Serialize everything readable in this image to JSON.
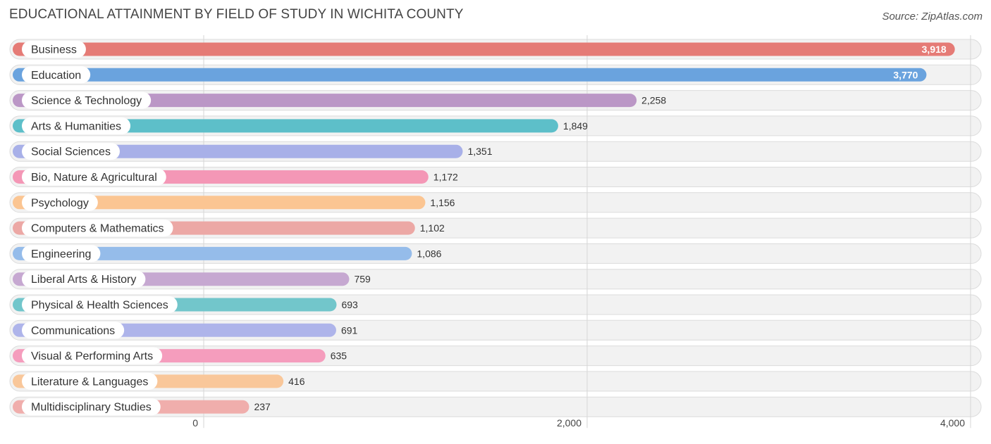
{
  "header": {
    "title": "EDUCATIONAL ATTAINMENT BY FIELD OF STUDY IN WICHITA COUNTY",
    "source": "Source: ZipAtlas.com"
  },
  "chart_data": {
    "type": "bar",
    "orientation": "horizontal",
    "title": "EDUCATIONAL ATTAINMENT BY FIELD OF STUDY IN WICHITA COUNTY",
    "xlabel": "",
    "ylabel": "",
    "xlim": [
      0,
      4000
    ],
    "ticks": [
      0,
      2000,
      4000
    ],
    "tick_labels": [
      "0",
      "2,000",
      "4,000"
    ],
    "grid": true,
    "categories": [
      "Business",
      "Education",
      "Science & Technology",
      "Arts & Humanities",
      "Social Sciences",
      "Bio, Nature & Agricultural",
      "Psychology",
      "Computers & Mathematics",
      "Engineering",
      "Liberal Arts & History",
      "Physical & Health Sciences",
      "Communications",
      "Visual & Performing Arts",
      "Literature & Languages",
      "Multidisciplinary Studies"
    ],
    "values": [
      3918,
      3770,
      2258,
      1849,
      1351,
      1172,
      1156,
      1102,
      1086,
      759,
      693,
      691,
      635,
      416,
      237
    ],
    "value_labels": [
      "3,918",
      "3,770",
      "2,258",
      "1,849",
      "1,351",
      "1,172",
      "1,156",
      "1,102",
      "1,086",
      "759",
      "693",
      "691",
      "635",
      "416",
      "237"
    ],
    "colors": [
      "#e57b76",
      "#6aa3de",
      "#bb97c6",
      "#5dbfc9",
      "#a8b0e8",
      "#f497b6",
      "#fbc592",
      "#eca8a5",
      "#95bcea",
      "#c6a8d1",
      "#72c6cb",
      "#aeb4ea",
      "#f59dbd",
      "#f9c79a",
      "#f0aeac"
    ]
  }
}
